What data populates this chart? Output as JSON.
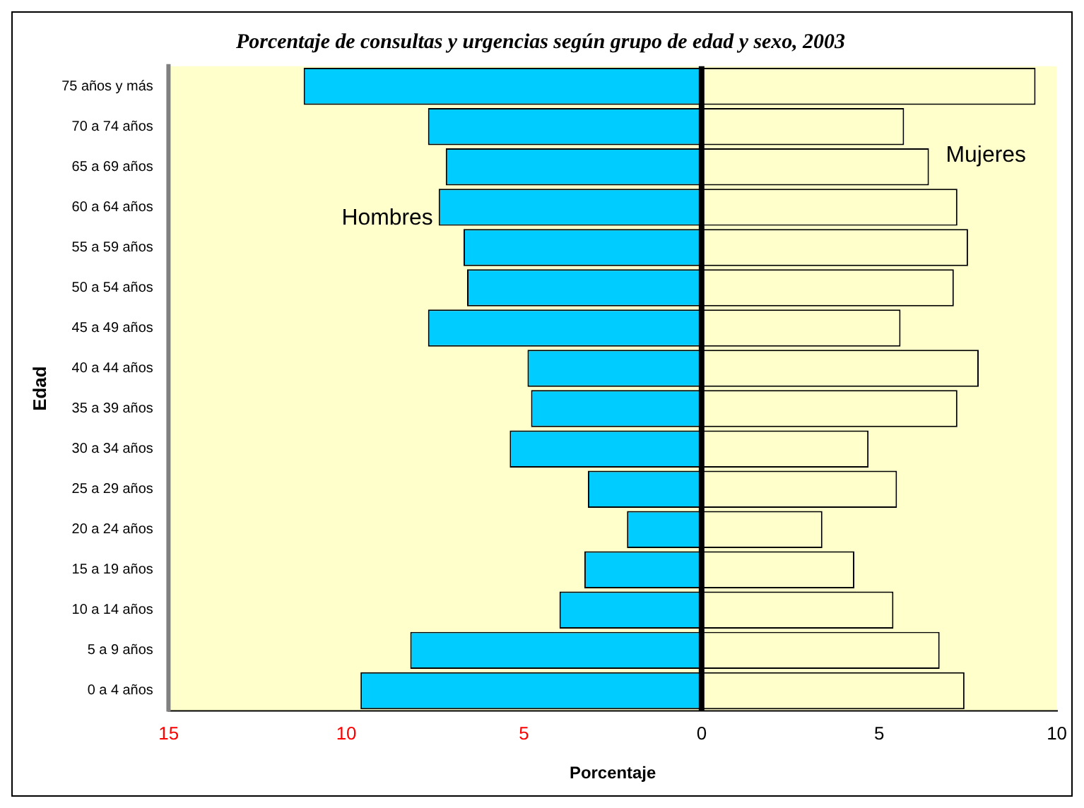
{
  "chart_data": {
    "type": "bar",
    "orientation": "horizontal",
    "stacked": true,
    "title": "Porcentaje de consultas y urgencias según grupo de edad y sexo, 2003",
    "xlabel": "Porcentaje",
    "ylabel": "Edad",
    "categories": [
      "75 años y más",
      "70 a 74 años",
      "65 a 69 años",
      "60 a 64 años",
      "55 a 59 años",
      "50 a 54 años",
      "45 a 49 años",
      "40 a 44 años",
      "35 a 39 años",
      "30 a 34 años",
      "25 a 29 años",
      "20 a 24 años",
      "15 a 19 años",
      "10 a 14 años",
      "5 a 9 años",
      "0 a 4 años"
    ],
    "series": [
      {
        "name": "Hombres",
        "color": "#00ccff",
        "values": [
          -11.2,
          -7.7,
          -7.2,
          -7.4,
          -6.7,
          -6.6,
          -7.7,
          -4.9,
          -4.8,
          -5.4,
          -3.2,
          -2.1,
          -3.3,
          -4.0,
          -8.2,
          -9.6
        ]
      },
      {
        "name": "Mujeres",
        "color": "#ffffcc",
        "values": [
          9.4,
          5.7,
          6.4,
          7.2,
          7.5,
          7.1,
          5.6,
          7.8,
          7.2,
          4.7,
          5.5,
          3.4,
          4.3,
          5.4,
          6.7,
          7.4
        ]
      }
    ],
    "xlim": [
      -15,
      10
    ],
    "xticks": [
      {
        "value": -15,
        "label": "15"
      },
      {
        "value": -10,
        "label": "10"
      },
      {
        "value": -5,
        "label": "5"
      },
      0,
      5,
      10
    ],
    "grid": false,
    "legend": false,
    "ref_lines": [
      {
        "axis": "x",
        "value": 0,
        "color": "#000000"
      }
    ]
  }
}
